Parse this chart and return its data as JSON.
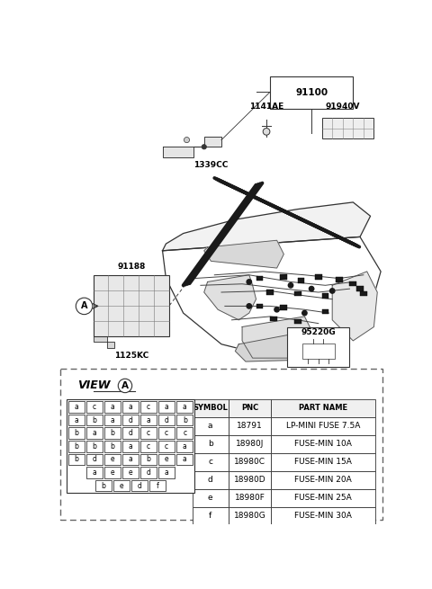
{
  "bg_color": "#ffffff",
  "fig_width": 4.8,
  "fig_height": 6.55,
  "dpi": 100,
  "table_rows": [
    [
      "a",
      "18791",
      "LP-MINI FUSE 7.5A"
    ],
    [
      "b",
      "18980J",
      "FUSE-MIN 10A"
    ],
    [
      "c",
      "18980C",
      "FUSE-MIN 15A"
    ],
    [
      "d",
      "18980D",
      "FUSE-MIN 20A"
    ],
    [
      "e",
      "18980F",
      "FUSE-MIN 25A"
    ],
    [
      "f",
      "18980G",
      "FUSE-MIN 30A"
    ]
  ],
  "table_header": [
    "SYMBOL",
    "PNC",
    "PART NAME"
  ],
  "fuse_grid_rows": [
    [
      "a",
      "c",
      "a",
      "a",
      "c",
      "a",
      "a"
    ],
    [
      "a",
      "b",
      "a",
      "d",
      "a",
      "d",
      "b"
    ],
    [
      "b",
      "a",
      "b",
      "d",
      "c",
      "c",
      "c"
    ],
    [
      "b",
      "b",
      "b",
      "a",
      "c",
      "c",
      "a"
    ],
    [
      "b",
      "d",
      "e",
      "a",
      "b",
      "e",
      "a"
    ],
    [
      "a",
      "e",
      "e",
      "d",
      "a"
    ],
    [
      "b",
      "e",
      "d",
      "f"
    ]
  ],
  "label_color": "#111111",
  "line_color": "#333333",
  "grid_color": "#555555"
}
